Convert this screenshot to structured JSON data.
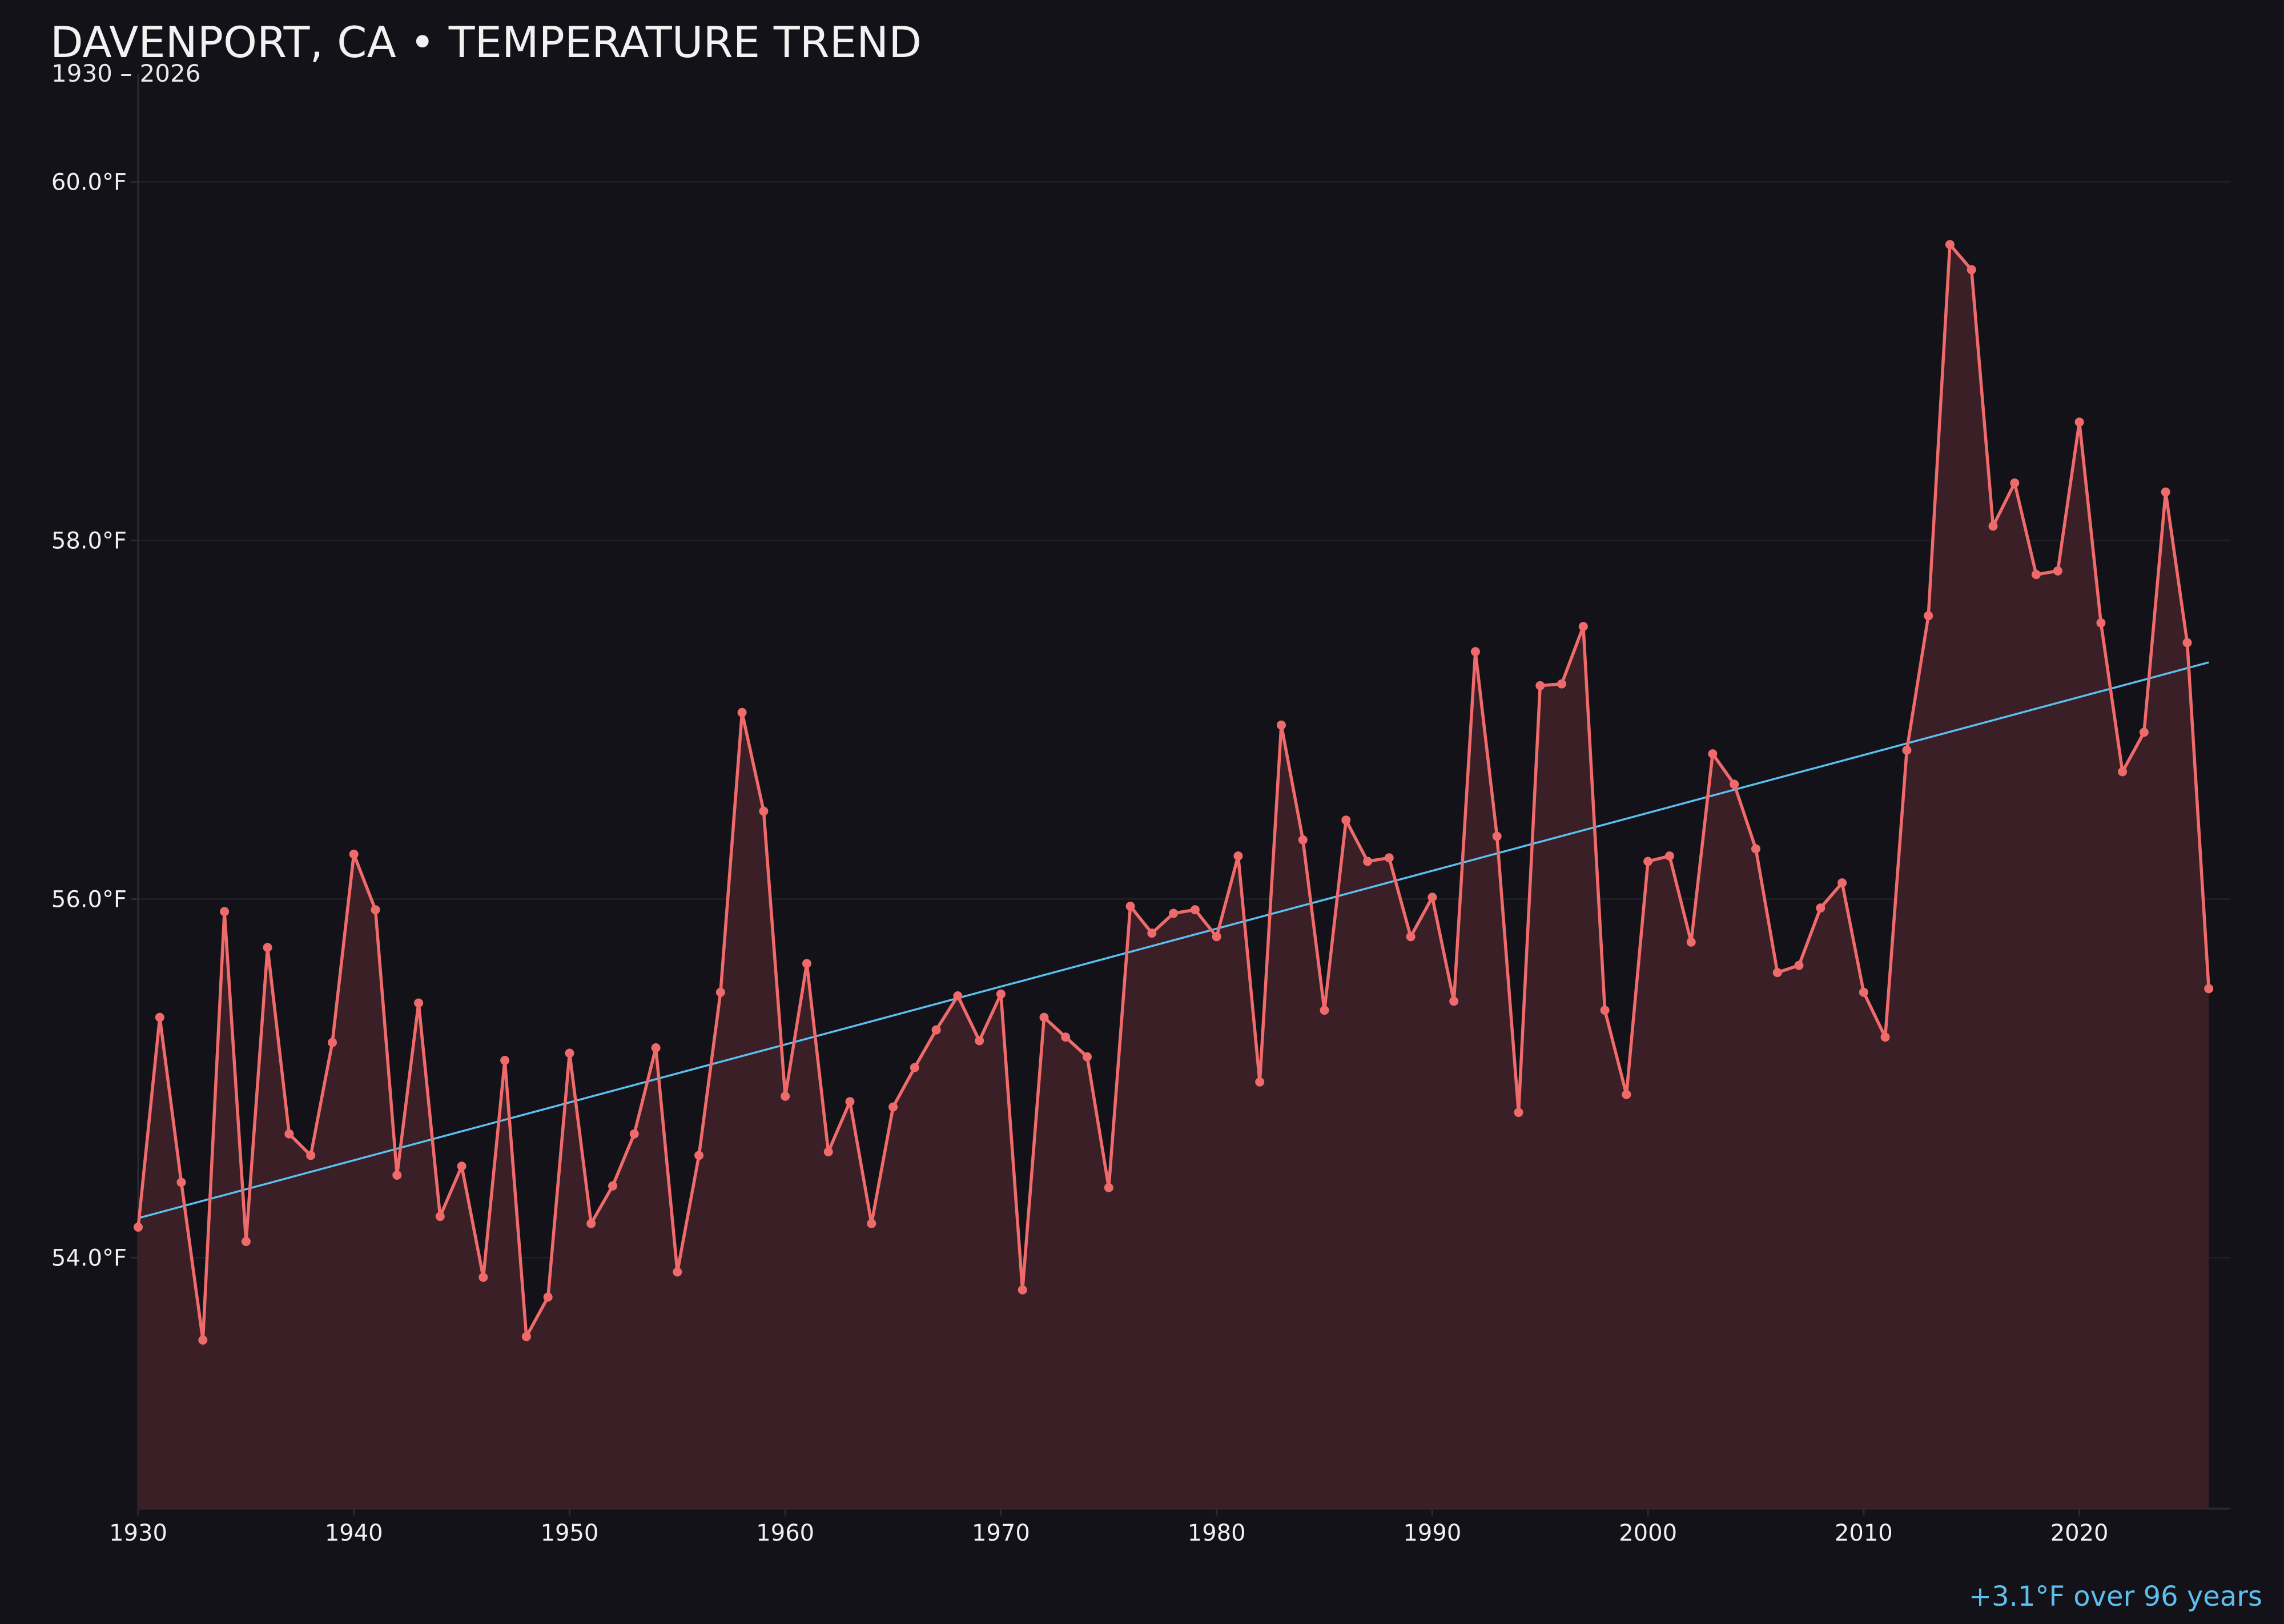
{
  "chart_data": {
    "type": "line",
    "title": "DAVENPORT, CA • TEMPERATURE TREND",
    "subtitle": "1930 – 2026",
    "xlabel": "",
    "ylabel": "",
    "x": [
      1930,
      1931,
      1932,
      1933,
      1934,
      1935,
      1936,
      1937,
      1938,
      1939,
      1940,
      1941,
      1942,
      1943,
      1944,
      1945,
      1946,
      1947,
      1948,
      1949,
      1950,
      1951,
      1952,
      1953,
      1954,
      1955,
      1956,
      1957,
      1958,
      1959,
      1960,
      1961,
      1962,
      1963,
      1964,
      1965,
      1966,
      1967,
      1968,
      1969,
      1970,
      1971,
      1972,
      1973,
      1974,
      1975,
      1976,
      1977,
      1978,
      1979,
      1980,
      1981,
      1982,
      1983,
      1984,
      1985,
      1986,
      1987,
      1988,
      1989,
      1990,
      1991,
      1992,
      1993,
      1994,
      1995,
      1996,
      1997,
      1998,
      1999,
      2000,
      2001,
      2002,
      2003,
      2004,
      2005,
      2006,
      2007,
      2008,
      2009,
      2010,
      2011,
      2012,
      2013,
      2014,
      2015,
      2016,
      2017,
      2018,
      2019,
      2020,
      2021,
      2022,
      2023,
      2024,
      2025,
      2026
    ],
    "series": [
      {
        "values": [
          54.17,
          55.34,
          54.42,
          53.54,
          55.93,
          54.09,
          55.73,
          54.69,
          54.57,
          55.2,
          56.25,
          55.94,
          54.46,
          55.42,
          54.23,
          54.51,
          53.89,
          55.1,
          53.56,
          53.78,
          55.14,
          54.19,
          54.4,
          54.69,
          55.17,
          53.92,
          54.57,
          55.48,
          57.04,
          56.49,
          54.9,
          55.64,
          54.59,
          54.87,
          54.19,
          54.84,
          55.06,
          55.27,
          55.46,
          55.21,
          55.47,
          53.82,
          55.34,
          55.23,
          55.12,
          54.39,
          55.96,
          55.81,
          55.92,
          55.94,
          55.79,
          56.24,
          54.98,
          56.97,
          56.33,
          55.38,
          56.44,
          56.21,
          56.23,
          55.79,
          56.01,
          55.43,
          57.38,
          56.35,
          54.81,
          57.19,
          57.2,
          57.52,
          55.38,
          54.91,
          56.21,
          56.24,
          55.76,
          56.81,
          56.64,
          56.28,
          55.59,
          55.63,
          55.95,
          56.09,
          55.48,
          55.23,
          56.83,
          57.58,
          59.65,
          59.51,
          58.08,
          58.32,
          57.81,
          57.83,
          58.66,
          57.54,
          56.71,
          56.93,
          58.27,
          57.43,
          55.5
        ],
        "color": "#ef6b6b",
        "fill": "#3a1f26"
      }
    ],
    "trend": {
      "start": 54.22,
      "end": 57.32,
      "color": "#5bc0f0"
    },
    "xlim": [
      1930,
      2027
    ],
    "ylim": [
      52.6,
      60.6
    ],
    "x_ticks": [
      1930,
      1940,
      1950,
      1960,
      1970,
      1980,
      1990,
      2000,
      2010,
      2020
    ],
    "y_ticks": [
      54.0,
      56.0,
      58.0,
      60.0
    ],
    "y_tick_labels": [
      "54.0°F",
      "56.0°F",
      "58.0°F",
      "60.0°F"
    ],
    "annotation": "+3.1°F over 96 years",
    "annotation_color": "#5bc0f0",
    "grid": true,
    "legend": "none",
    "background": "#131218"
  }
}
